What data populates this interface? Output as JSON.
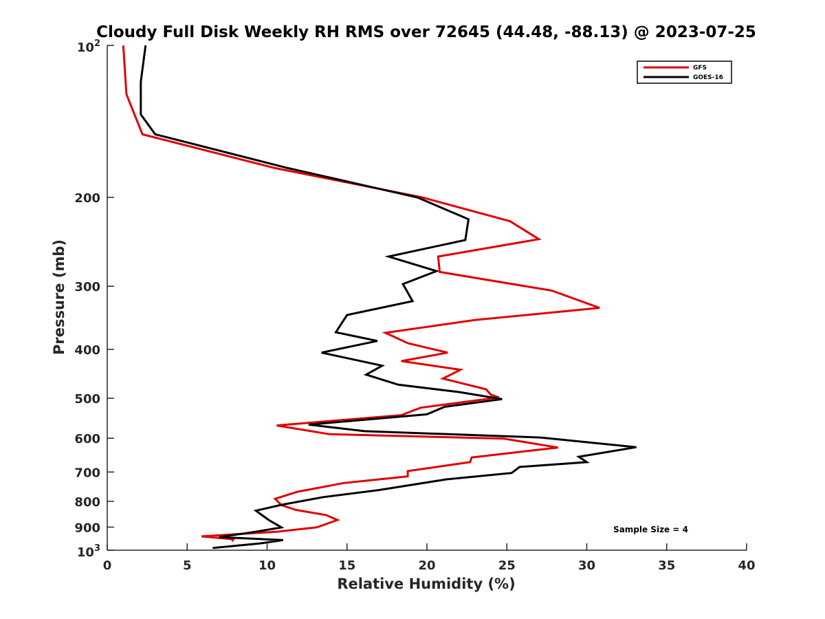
{
  "chart_data": {
    "type": "line",
    "title": "Cloudy Full Disk Weekly RH RMS over 72645 (44.48, -88.13) @ 2023-07-25",
    "xlabel": "Relative Humidity (%)",
    "ylabel": "Pressure (mb)",
    "xlim": [
      0,
      40
    ],
    "ylim": [
      100,
      1000
    ],
    "y_scale": "log",
    "y_reversed": true,
    "x_ticks": [
      0,
      5,
      10,
      15,
      20,
      25,
      30,
      35,
      40
    ],
    "y_ticks": [
      {
        "value": 100,
        "base": "10",
        "exp": "2"
      },
      {
        "value": 200,
        "label": "200"
      },
      {
        "value": 300,
        "label": "300"
      },
      {
        "value": 400,
        "label": "400"
      },
      {
        "value": 500,
        "label": "500"
      },
      {
        "value": 600,
        "label": "600"
      },
      {
        "value": 700,
        "label": "700"
      },
      {
        "value": 800,
        "label": "800"
      },
      {
        "value": 900,
        "label": "900"
      },
      {
        "value": 1000,
        "base": "10",
        "exp": "3"
      }
    ],
    "grid": false,
    "legend_position": "top-right",
    "series": [
      {
        "name": "GFS",
        "color": "#e00000",
        "points": [
          [
            1.0,
            100
          ],
          [
            1.2,
            125
          ],
          [
            2.2,
            150
          ],
          [
            10.5,
            175
          ],
          [
            19.7,
            200
          ],
          [
            25.2,
            223
          ],
          [
            27.0,
            242
          ],
          [
            20.7,
            262
          ],
          [
            20.8,
            281
          ],
          [
            27.8,
            306
          ],
          [
            30.8,
            331
          ],
          [
            23.0,
            350
          ],
          [
            17.4,
            371
          ],
          [
            18.8,
            389
          ],
          [
            21.3,
            406
          ],
          [
            18.4,
            422
          ],
          [
            22.1,
            439
          ],
          [
            21.0,
            457
          ],
          [
            23.7,
            480
          ],
          [
            24.0,
            492
          ],
          [
            24.5,
            498
          ],
          [
            19.6,
            522
          ],
          [
            18.4,
            540
          ],
          [
            10.6,
            566
          ],
          [
            13.9,
            589
          ],
          [
            24.8,
            601
          ],
          [
            28.2,
            626
          ],
          [
            22.8,
            655
          ],
          [
            22.7,
            669
          ],
          [
            18.8,
            697
          ],
          [
            18.8,
            714
          ],
          [
            14.8,
            736
          ],
          [
            11.9,
            766
          ],
          [
            10.5,
            791
          ],
          [
            10.9,
            814
          ],
          [
            11.8,
            832
          ],
          [
            13.7,
            852
          ],
          [
            14.4,
            871
          ],
          [
            13.1,
            901
          ],
          [
            10.6,
            919
          ],
          [
            5.9,
            939
          ],
          [
            7.9,
            951
          ],
          [
            7.8,
            960
          ]
        ]
      },
      {
        "name": "GOES-16",
        "color": "#000000",
        "points": [
          [
            2.4,
            100
          ],
          [
            2.1,
            118
          ],
          [
            2.1,
            125
          ],
          [
            2.1,
            132
          ],
          [
            2.1,
            137
          ],
          [
            3.0,
            150
          ],
          [
            11.3,
            175
          ],
          [
            19.4,
            200
          ],
          [
            22.6,
            221
          ],
          [
            22.4,
            243
          ],
          [
            17.6,
            262
          ],
          [
            20.6,
            280
          ],
          [
            18.5,
            297
          ],
          [
            19.1,
            321
          ],
          [
            15.0,
            342
          ],
          [
            14.3,
            370
          ],
          [
            16.9,
            385
          ],
          [
            13.4,
            406
          ],
          [
            17.2,
            431
          ],
          [
            16.2,
            449
          ],
          [
            18.2,
            470
          ],
          [
            22.0,
            486
          ],
          [
            24.7,
            502
          ],
          [
            21.1,
            520
          ],
          [
            20.0,
            538
          ],
          [
            12.6,
            564
          ],
          [
            16.1,
            581
          ],
          [
            27.1,
            598
          ],
          [
            33.1,
            625
          ],
          [
            29.5,
            653
          ],
          [
            30.0,
            669
          ],
          [
            25.8,
            684
          ],
          [
            25.3,
            703
          ],
          [
            21.2,
            724
          ],
          [
            17.0,
            760
          ],
          [
            13.5,
            785
          ],
          [
            10.9,
            813
          ],
          [
            9.3,
            835
          ],
          [
            10.1,
            871
          ],
          [
            10.9,
            901
          ],
          [
            9.4,
            918
          ],
          [
            7.0,
            942
          ],
          [
            11.0,
            955
          ],
          [
            9.5,
            970
          ],
          [
            6.6,
            990
          ]
        ]
      }
    ],
    "annotations": [
      {
        "text": "Sample Size = 4",
        "x": 34,
        "y": 910
      }
    ]
  }
}
